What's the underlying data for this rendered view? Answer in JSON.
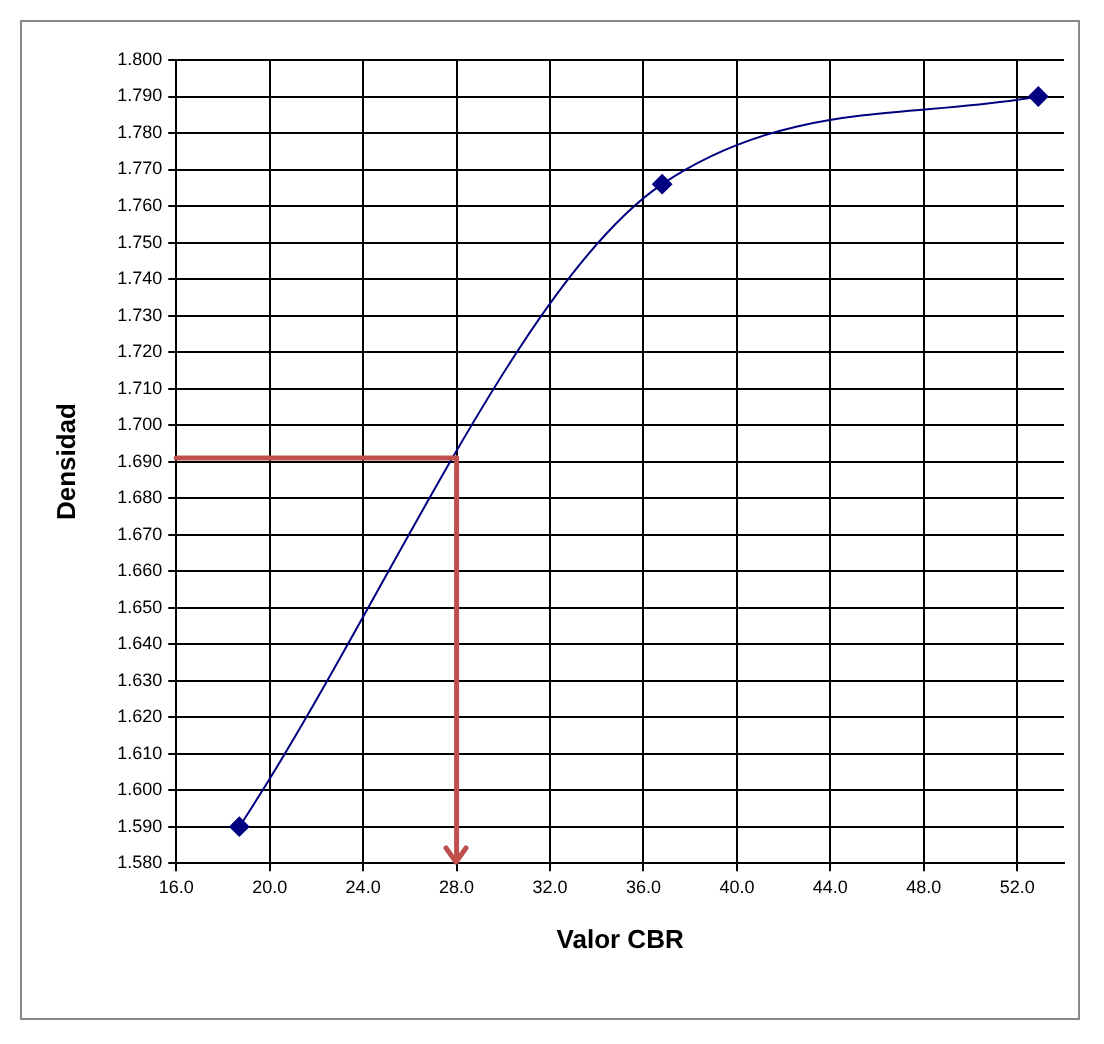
{
  "chart_data": {
    "type": "line",
    "xlabel": "Valor CBR",
    "ylabel": "Densidad",
    "x": [
      18.7,
      36.8,
      52.9
    ],
    "series": [
      {
        "color": "#000080",
        "values": [
          1.59,
          1.766,
          1.79
        ]
      }
    ],
    "xlim": [
      16,
      54
    ],
    "xticks": [
      {
        "value": 16,
        "label": "16.0"
      },
      {
        "value": 20,
        "label": "20.0"
      },
      {
        "value": 24,
        "label": "24.0"
      },
      {
        "value": 28,
        "label": "28.0"
      },
      {
        "value": 32,
        "label": "32.0"
      },
      {
        "value": 36,
        "label": "36.0"
      },
      {
        "value": 40,
        "label": "40.0"
      },
      {
        "value": 44,
        "label": "44.0"
      },
      {
        "value": 48,
        "label": "48.0"
      },
      {
        "value": 52,
        "label": "52.0"
      }
    ],
    "ylim": [
      1.58,
      1.8
    ],
    "yticks": [
      {
        "value": 1.58,
        "label": "1.580"
      },
      {
        "value": 1.59,
        "label": "1.590"
      },
      {
        "value": 1.6,
        "label": "1.600"
      },
      {
        "value": 1.61,
        "label": "1.610"
      },
      {
        "value": 1.62,
        "label": "1.620"
      },
      {
        "value": 1.63,
        "label": "1.630"
      },
      {
        "value": 1.64,
        "label": "1.640"
      },
      {
        "value": 1.65,
        "label": "1.650"
      },
      {
        "value": 1.66,
        "label": "1.660"
      },
      {
        "value": 1.67,
        "label": "1.670"
      },
      {
        "value": 1.68,
        "label": "1.680"
      },
      {
        "value": 1.69,
        "label": "1.690"
      },
      {
        "value": 1.7,
        "label": "1.700"
      },
      {
        "value": 1.71,
        "label": "1.710"
      },
      {
        "value": 1.72,
        "label": "1.720"
      },
      {
        "value": 1.73,
        "label": "1.730"
      },
      {
        "value": 1.74,
        "label": "1.740"
      },
      {
        "value": 1.75,
        "label": "1.750"
      },
      {
        "value": 1.76,
        "label": "1.760"
      },
      {
        "value": 1.77,
        "label": "1.770"
      },
      {
        "value": 1.78,
        "label": "1.780"
      },
      {
        "value": 1.79,
        "label": "1.790"
      },
      {
        "value": 1.8,
        "label": "1.800"
      }
    ],
    "ref_lines": [
      {
        "axis": "y",
        "value": 1.691,
        "color": "#c0504d"
      },
      {
        "axis": "x",
        "value": 28,
        "color": "#c0504d"
      }
    ],
    "grid": true,
    "marker": "diamond",
    "line_style": "solid",
    "legend": false
  }
}
